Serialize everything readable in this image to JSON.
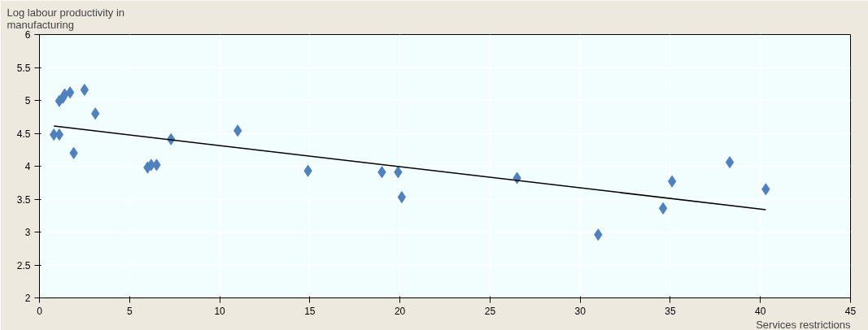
{
  "chart_data": {
    "type": "scatter",
    "xlabel": "Services restrictions",
    "ylabel": "Log labour productivity in\nmanufacturing",
    "xlim": [
      0,
      45
    ],
    "xticks": [
      0,
      5,
      10,
      15,
      20,
      25,
      30,
      35,
      40,
      45
    ],
    "ylim": [
      2,
      6
    ],
    "yticks": [
      2,
      2.5,
      3,
      3.5,
      4,
      4.5,
      5,
      5.5,
      6
    ],
    "grid": true,
    "series": [
      {
        "marker": "diamond",
        "color": "#4f81bd",
        "x": [
          0.8,
          1.1,
          1.1,
          1.3,
          1.4,
          1.7,
          1.9,
          2.5,
          3.1,
          6.0,
          6.2,
          6.5,
          7.3,
          11.0,
          14.9,
          19.0,
          19.9,
          20.1,
          26.5,
          31.0,
          34.6,
          35.1,
          38.3,
          40.3
        ],
        "values": [
          4.48,
          4.48,
          4.99,
          5.04,
          5.09,
          5.12,
          4.2,
          5.16,
          4.8,
          3.98,
          4.02,
          4.02,
          4.41,
          4.54,
          3.93,
          3.91,
          3.91,
          3.53,
          3.82,
          2.96,
          3.36,
          3.77,
          4.06,
          3.65
        ]
      },
      {
        "type": "line",
        "color": "#000000",
        "line_style": "solid",
        "x": [
          0.8,
          40.3
        ],
        "values": [
          4.61,
          3.34
        ]
      }
    ]
  }
}
